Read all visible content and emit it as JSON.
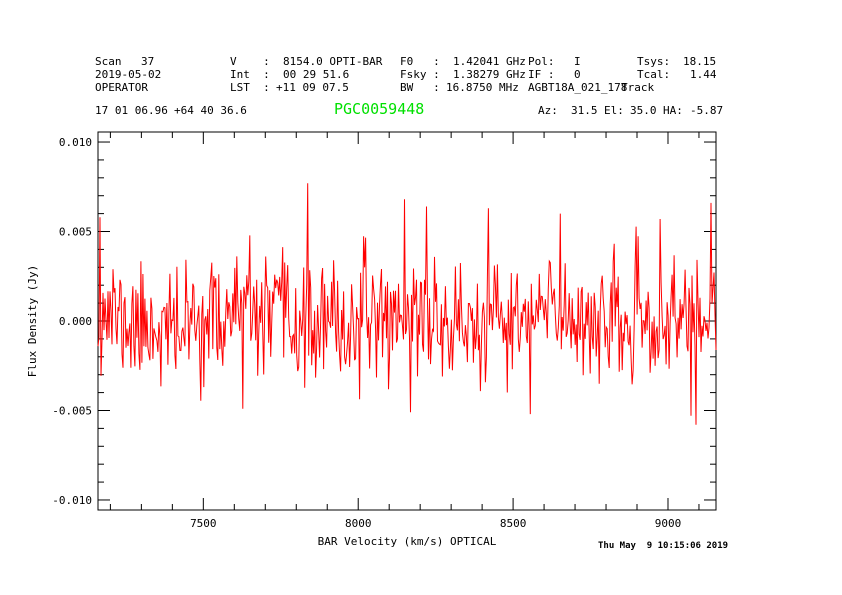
{
  "header": {
    "scan_label": "Scan",
    "scan_value": "37",
    "date": "2019-05-02",
    "operator": "OPERATOR",
    "v_label": "V    :",
    "v_value": "8154.0 OPTI-BAR",
    "int_label": "Int  :",
    "int_value": "00 29 51.6",
    "lst_label": "LST  :",
    "lst_value": "+11 09 07.5",
    "f0_label": "F0   :",
    "f0_value": "1.42041 GHz",
    "fsky_label": "Fsky :",
    "fsky_value": "1.38279 GHz",
    "bw_label": "BW   :",
    "bw_value": "16.8750 MHz",
    "pol_label": "Pol:",
    "pol_value": "I",
    "if_label": "IF :",
    "if_value": "0",
    "project": "AGBT18A_021_178",
    "procedure": "Track",
    "tsys_label": "Tsys:",
    "tsys_value": "18.15",
    "tcal_label": "Tcal:",
    "tcal_value": "1.44"
  },
  "pointing": {
    "ra": "17 01 06.96",
    "dec": "+64 40 36.6",
    "source": "PGC0059448",
    "az_label": "Az:",
    "az_value": "31.5",
    "el_label": "El:",
    "el_value": "35.0",
    "ha_label": "HA:",
    "ha_value": "-5.87"
  },
  "footer": {
    "timestamp": "Thu May  9 10:15:06 2019"
  },
  "colors": {
    "trace": "#ff0000",
    "source_title": "#00e000",
    "text": "#000000",
    "background": "#ffffff"
  },
  "chart_data": {
    "type": "line",
    "title": "PGC0059448",
    "xlabel": "BAR Velocity (km/s) OPTICAL",
    "ylabel": "Flux Density (Jy)",
    "x_range": [
      7160,
      9155
    ],
    "y_range": [
      -0.01056,
      0.01056
    ],
    "x_ticks": [
      7500,
      8000,
      8500,
      9000
    ],
    "x_tick_labels": [
      "7500",
      "8000",
      "8500",
      "9000"
    ],
    "x_minor_step": 100,
    "y_ticks": [
      0.01,
      0.005,
      0.0,
      -0.005,
      -0.01
    ],
    "y_tick_labels": [
      "0.010",
      "0.005",
      "0.000",
      "-0.005",
      "-0.010"
    ],
    "y_minor_step": 0.001,
    "grid": false,
    "legend": null,
    "line_color": "#ff0000",
    "noise": {
      "n_points": 620,
      "mean": 0.0,
      "sigma": 0.0016,
      "seed": 11,
      "clip": 0.0053
    },
    "features": [
      {
        "x": 7168,
        "y": 0.0058
      },
      {
        "x": 7838,
        "y": 0.0077
      },
      {
        "x": 8151,
        "y": 0.0068
      },
      {
        "x": 8219,
        "y": 0.0064
      },
      {
        "x": 8419,
        "y": 0.0063
      },
      {
        "x": 8651,
        "y": 0.006
      },
      {
        "x": 8974,
        "y": 0.0057
      },
      {
        "x": 9140,
        "y": 0.0066
      },
      {
        "x": 7628,
        "y": -0.0049
      },
      {
        "x": 8170,
        "y": -0.0051
      },
      {
        "x": 8554,
        "y": -0.0052
      },
      {
        "x": 9090,
        "y": -0.0058
      }
    ]
  }
}
